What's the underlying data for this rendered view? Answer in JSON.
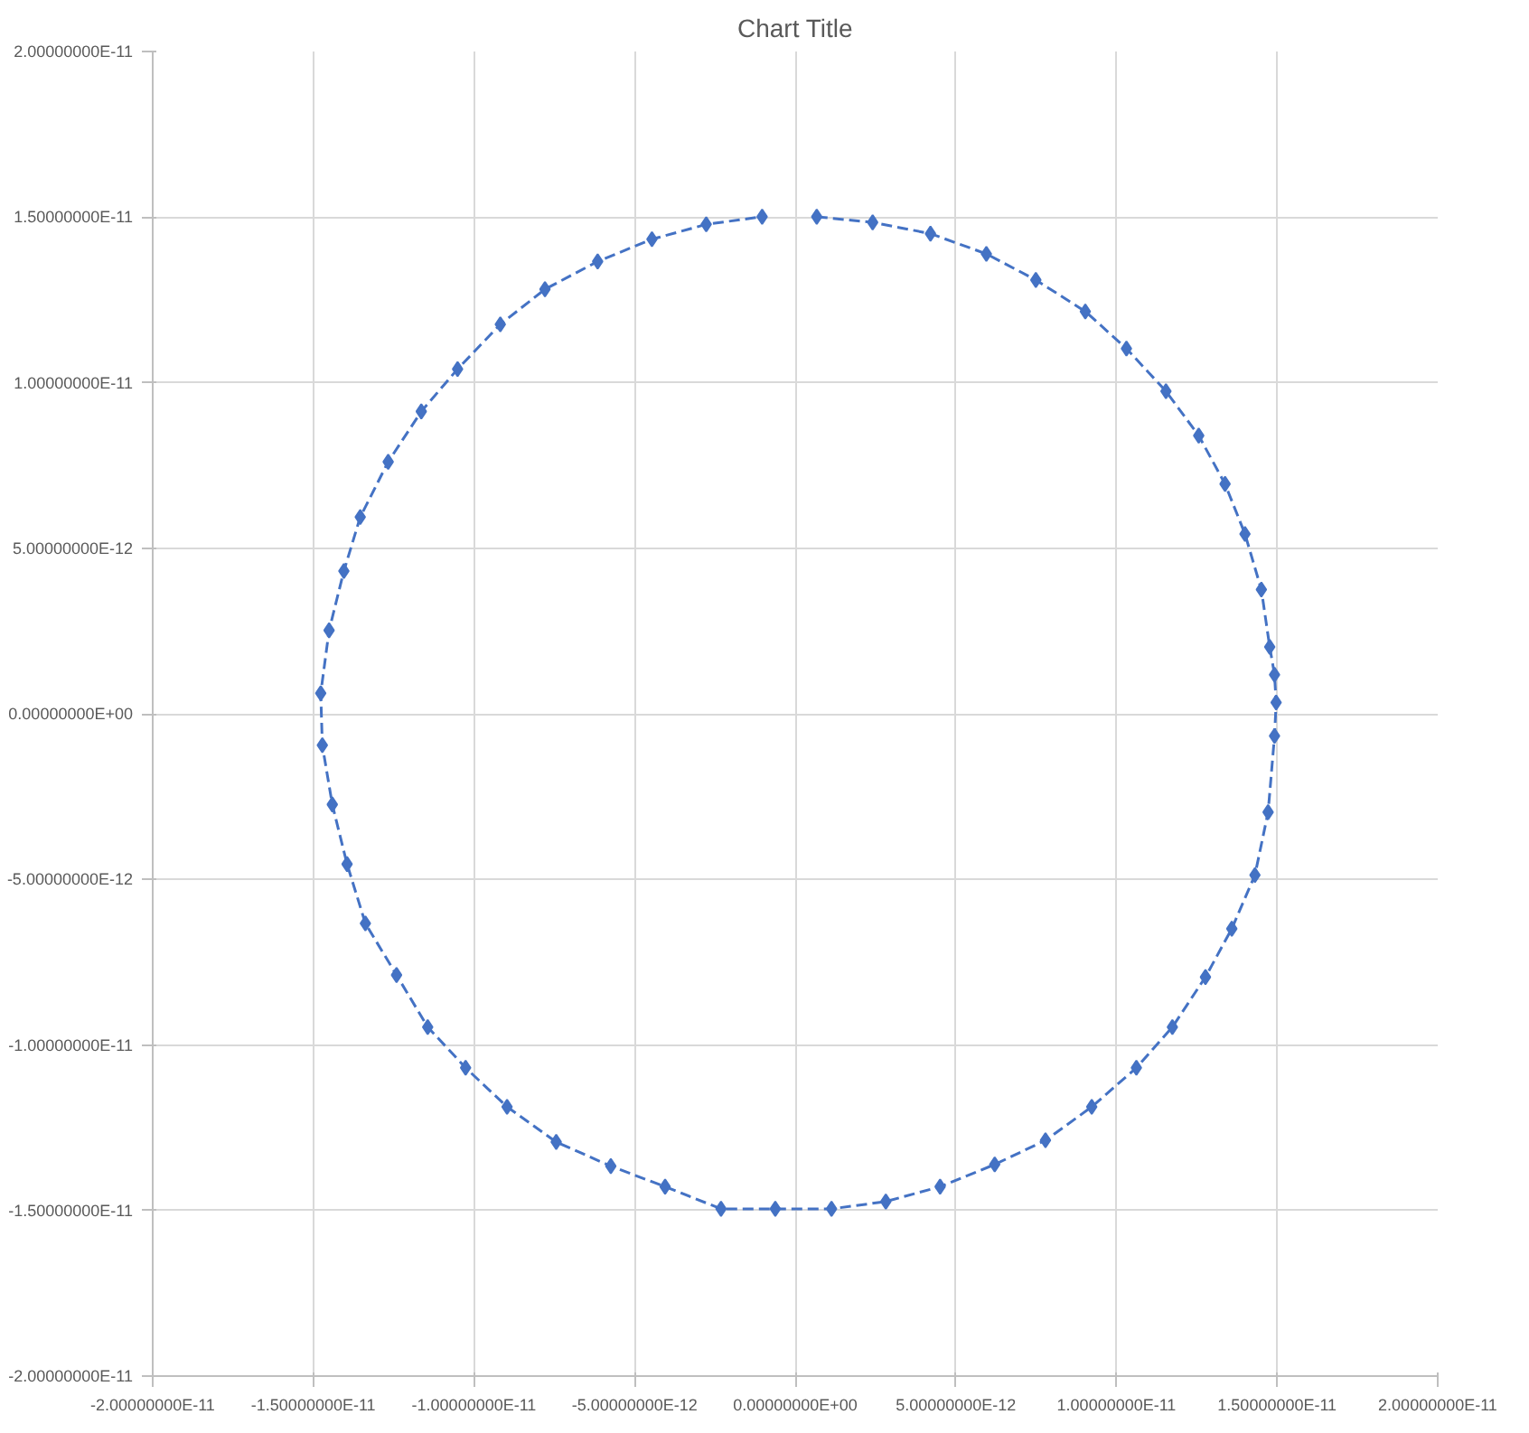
{
  "chart_data": {
    "type": "line",
    "title": "Chart Title",
    "grid": true,
    "marker": "diamond",
    "line_style": "dashed",
    "xlim": [
      -2e-11,
      2e-11
    ],
    "ylim": [
      -2e-11,
      2e-11
    ],
    "xticks": [
      {
        "value": -2e-11,
        "label": "-2.00000000E-11"
      },
      {
        "value": -1.5e-11,
        "label": "-1.50000000E-11"
      },
      {
        "value": -1e-11,
        "label": "-1.00000000E-11"
      },
      {
        "value": -5e-12,
        "label": "-5.00000000E-12"
      },
      {
        "value": 0,
        "label": "0.00000000E+00"
      },
      {
        "value": 5e-12,
        "label": "5.00000000E-12"
      },
      {
        "value": 1e-11,
        "label": "1.00000000E-11"
      },
      {
        "value": 1.5e-11,
        "label": "1.50000000E-11"
      },
      {
        "value": 2e-11,
        "label": "2.00000000E-11"
      }
    ],
    "yticks": [
      {
        "value": -2e-11,
        "label": "-2.00000000E-11"
      },
      {
        "value": -1.5e-11,
        "label": "-1.50000000E-11"
      },
      {
        "value": -1e-11,
        "label": "-1.00000000E-11"
      },
      {
        "value": -5e-12,
        "label": "-5.00000000E-12"
      },
      {
        "value": 0,
        "label": "0.00000000E+00"
      },
      {
        "value": 5e-12,
        "label": "5.00000000E-12"
      },
      {
        "value": 1e-11,
        "label": "1.00000000E-11"
      },
      {
        "value": 1.5e-11,
        "label": "1.50000000E-11"
      },
      {
        "value": 2e-11,
        "label": "2.00000000E-11"
      }
    ],
    "series": [
      {
        "color": "#4472c4",
        "x": [
          6.7e-13,
          2.41e-12,
          4.21e-12,
          5.95e-12,
          7.49e-12,
          9.03e-12,
          1.031e-11,
          1.154e-11,
          1.256e-11,
          1.338e-11,
          1.4e-11,
          1.451e-11,
          1.477e-11,
          1.492e-11,
          1.497e-11,
          1.492e-11,
          1.472e-11,
          1.431e-11,
          1.359e-11,
          1.277e-11,
          1.174e-11,
          1.062e-11,
          9.23e-12,
          7.79e-12,
          6.21e-12,
          4.51e-12,
          2.82e-12,
          1.13e-12,
          -6.2e-13,
          -2.31e-12,
          -4.05e-12,
          -5.74e-12,
          -7.44e-12,
          -8.97e-12,
          -1.026e-11,
          -1.144e-11,
          -1.241e-11,
          -1.338e-11,
          -1.395e-11,
          -1.441e-11,
          -1.472e-11,
          -1.477e-11,
          -1.451e-11,
          -1.405e-11,
          -1.354e-11,
          -1.267e-11,
          -1.164e-11,
          -1.051e-11,
          -9.18e-12,
          -7.79e-12,
          -6.15e-12,
          -4.46e-12,
          -2.77e-12,
          -1.03e-12
        ],
        "values": [
          1.501e-11,
          1.484e-11,
          1.45e-11,
          1.389e-11,
          1.31e-11,
          1.215e-11,
          1.103e-11,
          9.74e-12,
          8.4e-12,
          6.94e-12,
          5.43e-12,
          3.75e-12,
          2.02e-12,
          1.18e-12,
          3.4e-13,
          -6.7e-13,
          -2.97e-12,
          -4.87e-12,
          -6.49e-12,
          -7.95e-12,
          -9.46e-12,
          -1.069e-11,
          -1.187e-11,
          -1.288e-11,
          -1.361e-11,
          -1.428e-11,
          -1.473e-11,
          -1.495e-11,
          -1.495e-11,
          -1.495e-11,
          -1.428e-11,
          -1.366e-11,
          -1.293e-11,
          -1.187e-11,
          -1.069e-11,
          -9.46e-12,
          -7.89e-12,
          -6.33e-12,
          -4.54e-12,
          -2.74e-12,
          -9.5e-13,
          6.2e-13,
          2.52e-12,
          4.31e-12,
          5.94e-12,
          7.61e-12,
          9.13e-12,
          1.041e-11,
          1.176e-11,
          1.282e-11,
          1.366e-11,
          1.433e-11,
          1.478e-11,
          1.501e-11
        ]
      }
    ]
  }
}
